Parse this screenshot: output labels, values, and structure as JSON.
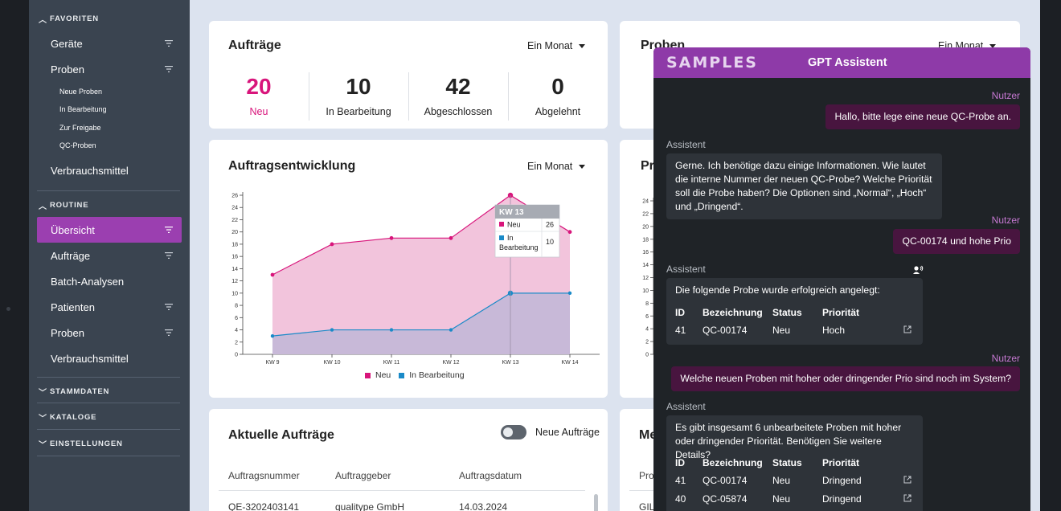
{
  "sidebar": {
    "favoriten": {
      "header": "FAVORITEN",
      "items": [
        "Geräte",
        "Proben"
      ],
      "sub_items": [
        "Neue Proben",
        "In Bearbeitung",
        "Zur Freigabe",
        "QC-Proben"
      ],
      "last": "Verbrauchsmittel"
    },
    "routine": {
      "header": "ROUTINE",
      "items": [
        "Übersicht",
        "Aufträge",
        "Batch-Analysen",
        "Patienten",
        "Proben",
        "Verbrauchsmittel"
      ]
    },
    "collapsed": [
      "STAMMDATEN",
      "KATALOGE",
      "EINSTELLUNGEN"
    ]
  },
  "auftraege_card": {
    "title": "Aufträge",
    "range": "Ein Monat",
    "stats": [
      {
        "value": "20",
        "label": "Neu"
      },
      {
        "value": "10",
        "label": "In Bearbeitung"
      },
      {
        "value": "42",
        "label": "Abgeschlossen"
      },
      {
        "value": "0",
        "label": "Abgelehnt"
      }
    ]
  },
  "proben_card": {
    "title": "Proben",
    "range": "Ein Monat"
  },
  "chart_card": {
    "title": "Auftragsentwicklung",
    "range": "Ein Monat",
    "tooltip": {
      "title": "KW 13",
      "rows": [
        {
          "label": "Neu",
          "value": "26"
        },
        {
          "label": "In Bearbeitung",
          "value": "10"
        }
      ]
    }
  },
  "chart_data": {
    "type": "area",
    "categories": [
      "KW 9",
      "KW 10",
      "KW 11",
      "KW 12",
      "KW 13",
      "KW 14"
    ],
    "series": [
      {
        "name": "Neu",
        "values": [
          13,
          18,
          19,
          19,
          26,
          20
        ],
        "color": "#d8157b"
      },
      {
        "name": "In Bearbeitung",
        "values": [
          3,
          4,
          4,
          4,
          10,
          10
        ],
        "color": "#1a8ac8"
      }
    ],
    "yticks": [
      0,
      2,
      4,
      6,
      8,
      10,
      12,
      14,
      16,
      18,
      20,
      22,
      24,
      26
    ],
    "ylim": [
      0,
      26
    ],
    "legend": "bottom"
  },
  "partial_chart": {
    "title_fragment": "Pro",
    "yticks": [
      0,
      2,
      4,
      6,
      8,
      10,
      12,
      14,
      16,
      18,
      20,
      22,
      24
    ]
  },
  "aktuelle_card": {
    "title": "Aktuelle Aufträge",
    "toggle_label": "Neue Aufträge",
    "columns": [
      "Auftragsnummer",
      "Auftraggeber",
      "Auftragsdatum"
    ],
    "rows": [
      [
        "QE-3202403141",
        "qualitype GmbH",
        "14.03.2024"
      ]
    ]
  },
  "partial_card": {
    "title_fragment": "Me",
    "col_fragment": "Prob",
    "cell_fragment": "GIL"
  },
  "chat": {
    "brand": "SAMPLES",
    "title": "GPT Assistent",
    "user_label": "Nutzer",
    "assistant_label": "Assistent",
    "messages": {
      "m1": "Hallo, bitte lege eine neue QC-Probe an.",
      "m2": "Gerne. Ich benötige dazu einige Informationen. Wie lautet die interne Nummer der neuen QC-Probe? Welche Priorität soll die Probe haben? Die Optionen sind „Normal“, „Hoch“ und „Dringend“.",
      "m3": "QC-00174 und hohe Prio",
      "m4": "Die folgende Probe wurde erfolgreich angelegt:",
      "m5": "Welche neuen Proben mit hoher oder dringender Prio sind noch im System?",
      "m6": "Es gibt insgesamt 6 unbearbeitete Proben mit hoher oder dringender Priorität. Benötigen Sie weitere Details?"
    },
    "table_headers": [
      "ID",
      "Bezeichnung",
      "Status",
      "Priorität"
    ],
    "table1": [
      [
        "41",
        "QC-00174",
        "Neu",
        "Hoch"
      ]
    ],
    "table2": [
      [
        "41",
        "QC-00174",
        "Neu",
        "Dringend"
      ],
      [
        "40",
        "QC-05874",
        "Neu",
        "Dringend"
      ]
    ]
  }
}
